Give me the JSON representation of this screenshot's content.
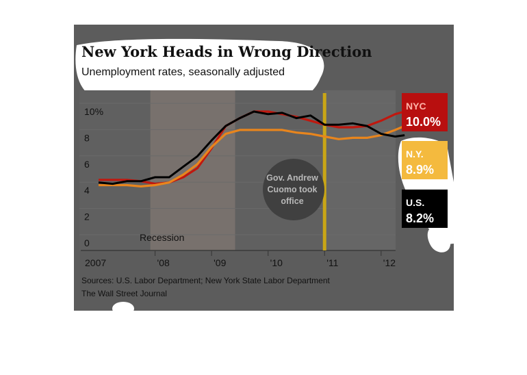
{
  "chart_data": {
    "type": "line",
    "title": "New York Heads in Wrong Direction",
    "subtitle": "Unemployment rates, seasonally adjusted",
    "ylabel": "",
    "xlabel": "",
    "y_ticks": [
      "10%",
      "8",
      "6",
      "4",
      "2",
      "0"
    ],
    "ylim": [
      0,
      11
    ],
    "x_ticks": [
      "2007",
      "'08",
      "'09",
      "'10",
      "'11",
      "'12"
    ],
    "xlim": [
      "2007-01",
      "2012-06"
    ],
    "shaded_band": {
      "label": "Recession",
      "start": "2007-12",
      "end": "2009-06"
    },
    "annotation": {
      "lines": [
        "Gov. Andrew",
        "Cuomo took",
        "office"
      ],
      "date": "2011-01"
    },
    "grid": true,
    "legend_position": "right",
    "series": [
      {
        "name": "NYC",
        "label_value": "10.0%",
        "color": "#c0180f",
        "x": [
          "2007-01",
          "2007-04",
          "2007-07",
          "2007-10",
          "2008-01",
          "2008-04",
          "2008-07",
          "2008-10",
          "2009-01",
          "2009-04",
          "2009-07",
          "2009-10",
          "2010-01",
          "2010-04",
          "2010-07",
          "2010-10",
          "2011-01",
          "2011-04",
          "2011-07",
          "2011-10",
          "2012-01",
          "2012-04",
          "2012-06"
        ],
        "y": [
          4.8,
          4.8,
          4.8,
          4.7,
          4.5,
          4.6,
          5.0,
          5.7,
          7.2,
          8.9,
          9.5,
          10.0,
          10.0,
          9.8,
          9.6,
          9.3,
          9.0,
          8.8,
          8.8,
          8.9,
          9.3,
          9.8,
          10.0
        ]
      },
      {
        "name": "N.Y.",
        "label_value": "8.9%",
        "color": "#e8851d",
        "x": [
          "2007-01",
          "2007-04",
          "2007-07",
          "2007-10",
          "2008-01",
          "2008-04",
          "2008-07",
          "2008-10",
          "2009-01",
          "2009-04",
          "2009-07",
          "2009-10",
          "2010-01",
          "2010-04",
          "2010-07",
          "2010-10",
          "2011-01",
          "2011-04",
          "2011-07",
          "2011-10",
          "2012-01",
          "2012-04",
          "2012-06"
        ],
        "y": [
          4.4,
          4.4,
          4.4,
          4.3,
          4.4,
          4.6,
          5.2,
          6.0,
          7.3,
          8.3,
          8.6,
          8.6,
          8.6,
          8.6,
          8.4,
          8.3,
          8.1,
          7.9,
          8.0,
          8.0,
          8.2,
          8.6,
          8.9
        ]
      },
      {
        "name": "U.S.",
        "label_value": "8.2%",
        "color": "#000000",
        "x": [
          "2007-01",
          "2007-04",
          "2007-07",
          "2007-10",
          "2008-01",
          "2008-04",
          "2008-07",
          "2008-10",
          "2009-01",
          "2009-04",
          "2009-07",
          "2009-10",
          "2010-01",
          "2010-04",
          "2010-07",
          "2010-10",
          "2011-01",
          "2011-04",
          "2011-07",
          "2011-10",
          "2012-01",
          "2012-04",
          "2012-06"
        ],
        "y": [
          4.6,
          4.5,
          4.7,
          4.7,
          5.0,
          5.0,
          5.8,
          6.6,
          7.8,
          8.9,
          9.5,
          10.0,
          9.8,
          9.9,
          9.5,
          9.7,
          9.0,
          9.0,
          9.1,
          8.9,
          8.3,
          8.1,
          8.2
        ]
      }
    ],
    "source": "Sources: U.S. Labor Department; New York State Labor Department",
    "publisher": "The Wall Street Journal"
  }
}
